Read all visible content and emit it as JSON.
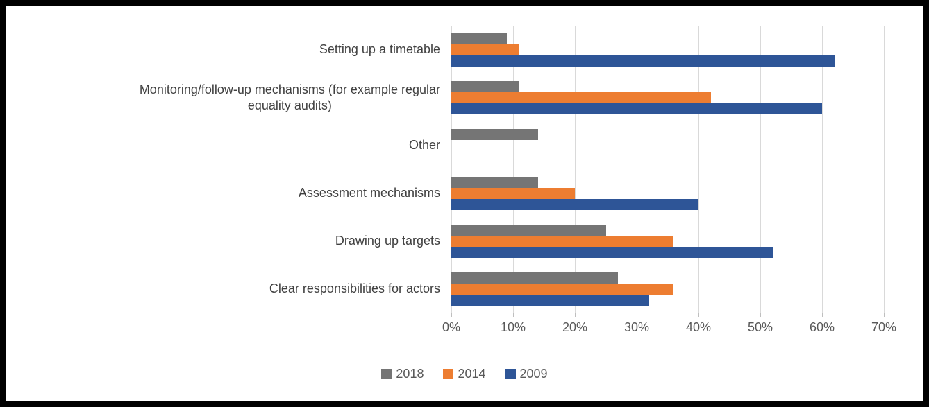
{
  "window": {
    "background": "#FFFFFF",
    "border_color": "#000000"
  },
  "colors": {
    "gridline": "#D9D9D9",
    "tick": "#BFBFBF",
    "axis_text": "#595959",
    "category_text": "#404040"
  },
  "chart_data": {
    "type": "bar",
    "orientation": "horizontal",
    "title": "",
    "xlabel": "",
    "ylabel": "",
    "categories": [
      "Setting up a timetable",
      "Monitoring/follow-up mechanisms (for example regular\nequality audits)",
      "Other",
      "Assessment mechanisms",
      "Drawing up targets",
      "Clear responsibilities for actors"
    ],
    "series": [
      {
        "name": "2018",
        "color": "#757575",
        "values": [
          9,
          11,
          14,
          14,
          25,
          27
        ]
      },
      {
        "name": "2014",
        "color": "#ED7D31",
        "values": [
          11,
          42,
          0,
          20,
          36,
          36
        ]
      },
      {
        "name": "2009",
        "color": "#2E5597",
        "values": [
          62,
          60,
          0,
          40,
          52,
          32
        ]
      }
    ],
    "x_ticks": [
      "0%",
      "10%",
      "20%",
      "30%",
      "40%",
      "50%",
      "60%",
      "70%"
    ],
    "xlim": [
      0,
      70
    ],
    "x_unit": "%",
    "grid": true,
    "legend_position": "bottom"
  }
}
